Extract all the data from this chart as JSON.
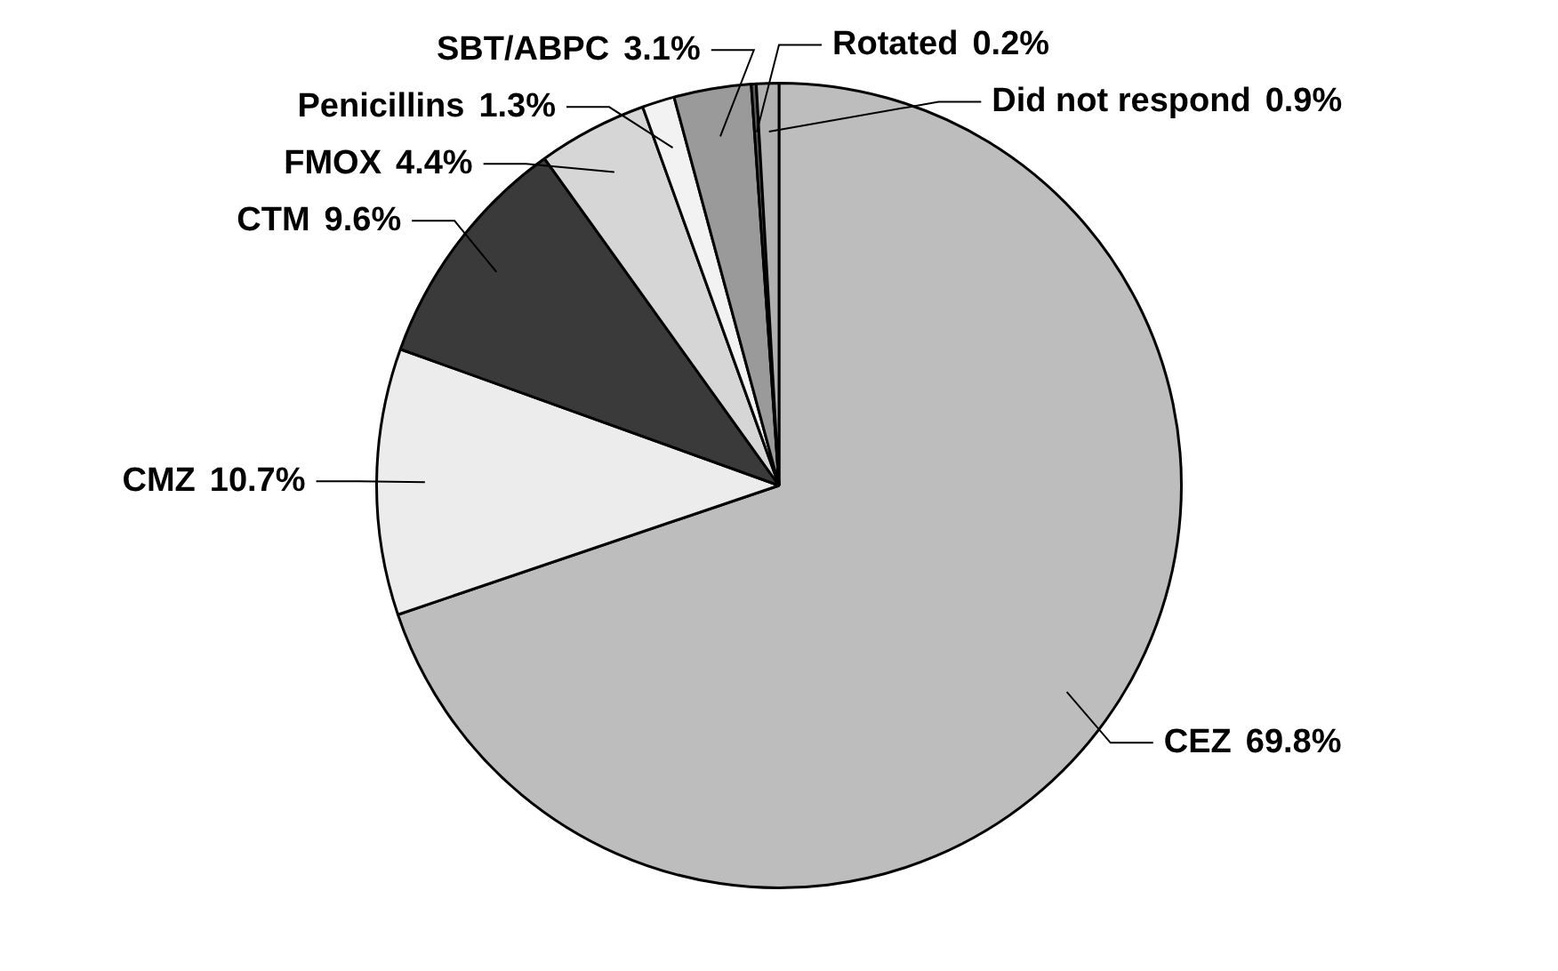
{
  "chart_data": {
    "type": "pie",
    "categories": [
      "CEZ",
      "CMZ",
      "CTM",
      "FMOX",
      "Penicillins",
      "SBT/ABPC",
      "Rotated",
      "Did not respond"
    ],
    "values": [
      69.8,
      10.7,
      9.6,
      4.4,
      1.3,
      3.1,
      0.2,
      0.9
    ],
    "colors": [
      "#bdbdbd",
      "#ececec",
      "#3a3a3a",
      "#d6d6d6",
      "#f2f2f2",
      "#9a9a9a",
      "#5a5a5a",
      "#b0b0b0"
    ],
    "value_labels": [
      "69.8%",
      "10.7%",
      "9.6%",
      "4.4%",
      "1.3%",
      "3.1%",
      "0.2%",
      "0.9%"
    ],
    "legend": false
  }
}
